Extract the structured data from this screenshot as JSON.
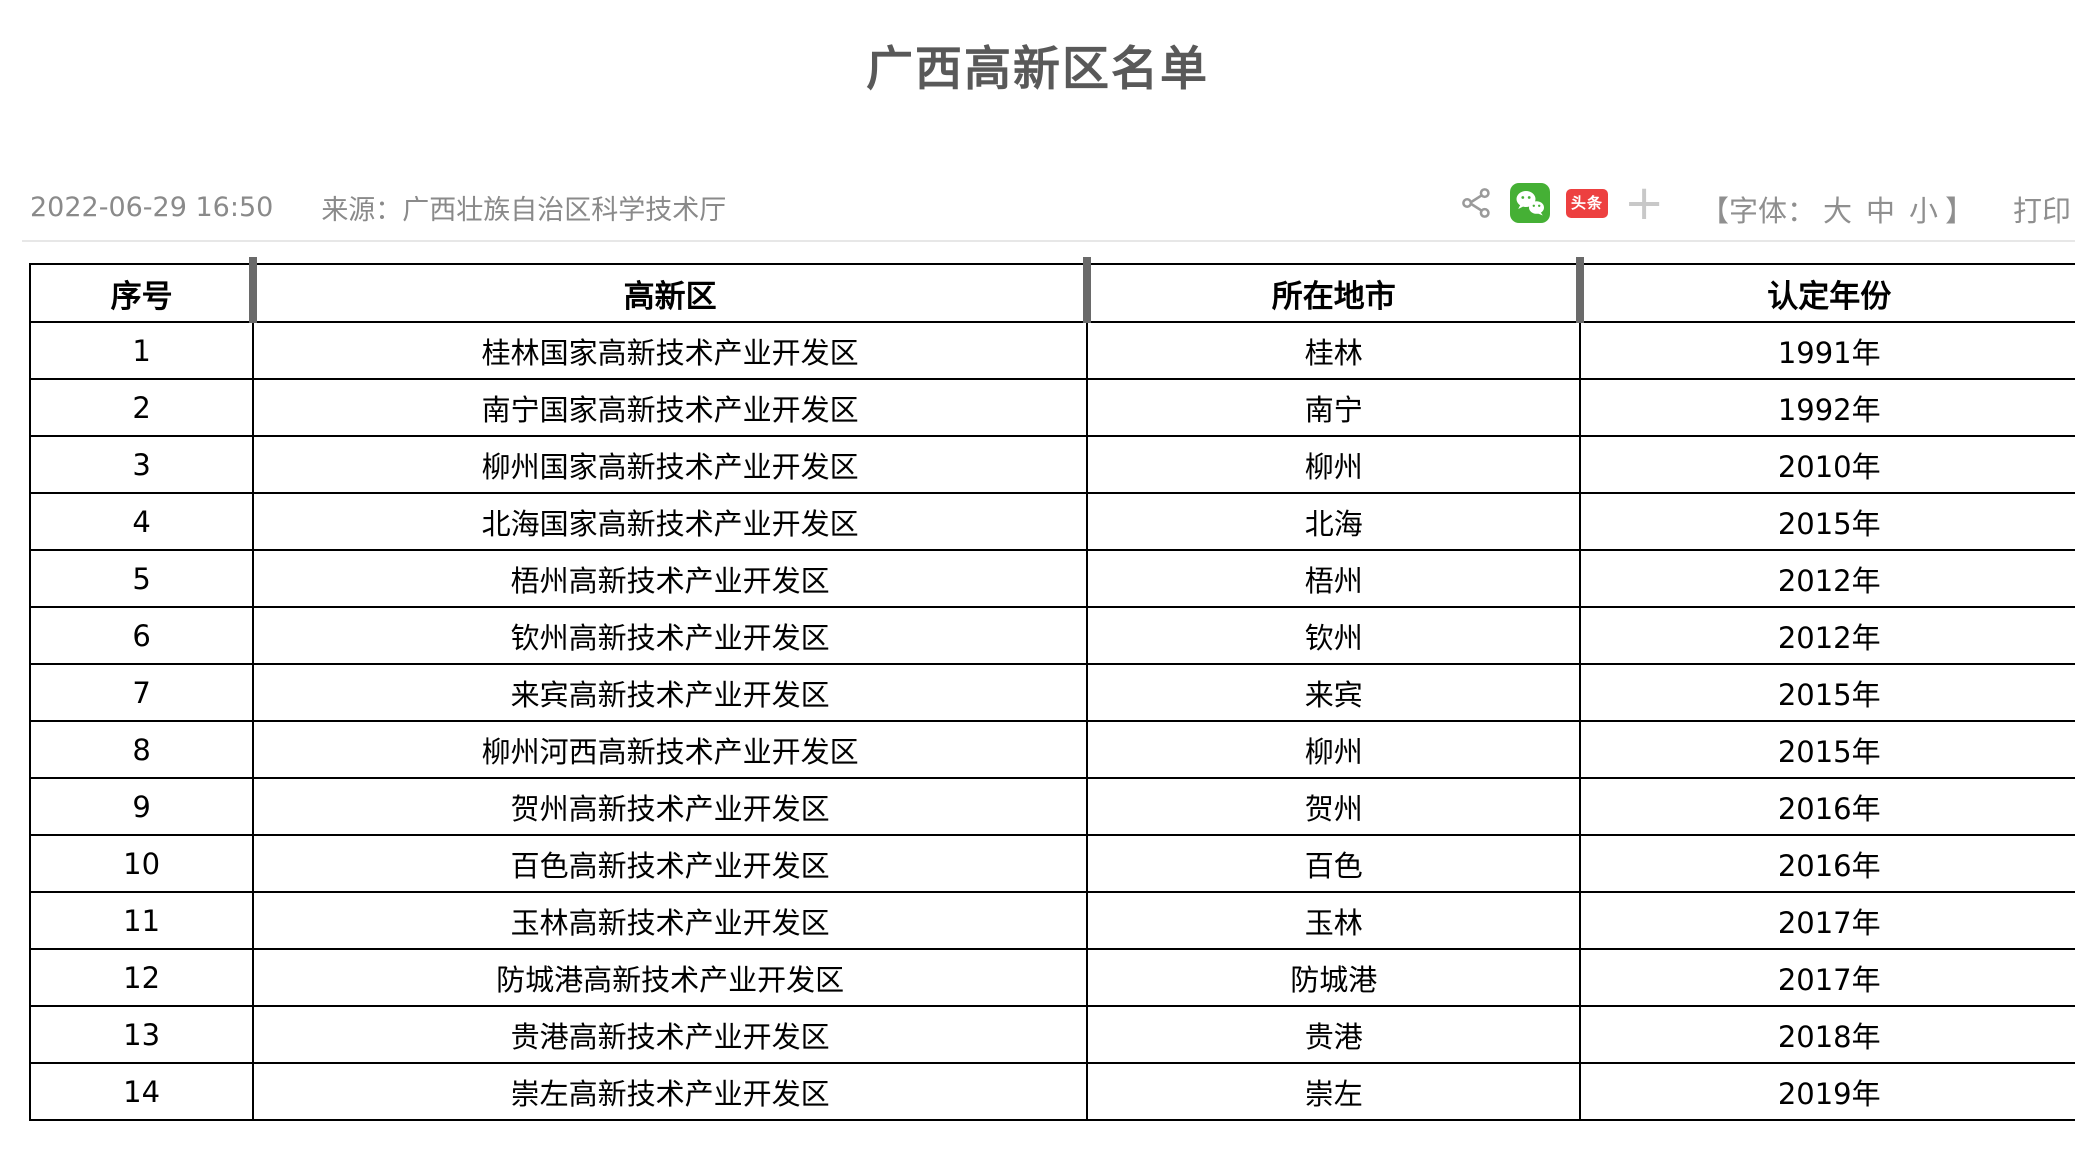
{
  "page": {
    "title": "广西高新区名单"
  },
  "meta": {
    "publish_time": "2022-06-29 16:50",
    "source": "来源：广西壮族自治区科学技术厅"
  },
  "toolbar": {
    "toutiao_badge": "头条",
    "more_glyph": "+",
    "font_label_open": "【字体：",
    "font_sizes": [
      "大",
      "中",
      "小"
    ],
    "font_label_close": "】",
    "print_label": "打印"
  },
  "table": {
    "headers": [
      "序号",
      "高新区",
      "所在地市",
      "认定年份"
    ],
    "rows": [
      [
        "1",
        "桂林国家高新技术产业开发区",
        "桂林",
        "1991年"
      ],
      [
        "2",
        "南宁国家高新技术产业开发区",
        "南宁",
        "1992年"
      ],
      [
        "3",
        "柳州国家高新技术产业开发区",
        "柳州",
        "2010年"
      ],
      [
        "4",
        "北海国家高新技术产业开发区",
        "北海",
        "2015年"
      ],
      [
        "5",
        "梧州高新技术产业开发区",
        "梧州",
        "2012年"
      ],
      [
        "6",
        "钦州高新技术产业开发区",
        "钦州",
        "2012年"
      ],
      [
        "7",
        "来宾高新技术产业开发区",
        "来宾",
        "2015年"
      ],
      [
        "8",
        "柳州河西高新技术产业开发区",
        "柳州",
        "2015年"
      ],
      [
        "9",
        "贺州高新技术产业开发区",
        "贺州",
        "2016年"
      ],
      [
        "10",
        "百色高新技术产业开发区",
        "百色",
        "2016年"
      ],
      [
        "11",
        "玉林高新技术产业开发区",
        "玉林",
        "2017年"
      ],
      [
        "12",
        "防城港高新技术产业开发区",
        "防城港",
        "2017年"
      ],
      [
        "13",
        "贵港高新技术产业开发区",
        "贵港",
        "2018年"
      ],
      [
        "14",
        "崇左高新技术产业开发区",
        "崇左",
        "2019年"
      ]
    ],
    "highlighted_row_index": 3
  },
  "colors": {
    "highlight_red": "#e9382d",
    "wechat_green": "#45b035",
    "toutiao_red": "#ed4040",
    "title_gray": "#595959",
    "meta_gray": "#8a8a8a"
  }
}
